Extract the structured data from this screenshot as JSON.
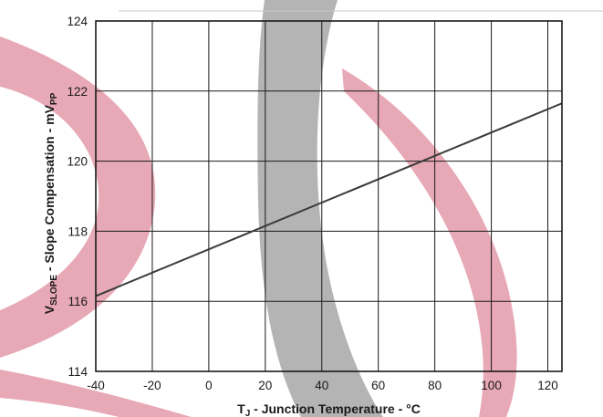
{
  "colors": {
    "grid": "#1a1a1a",
    "line": "#3a3a3a",
    "watermark_red": "#e8a9b6",
    "watermark_gray": "#b4b4b4"
  },
  "watermark": {
    "description": "decorative logo swooshes",
    "text": ""
  },
  "chart_data": {
    "type": "line",
    "title": "",
    "xlabel": {
      "prefix": "T",
      "subscript": "J",
      "rest": " - Junction Temperature - °C"
    },
    "ylabel": {
      "prefix": "V",
      "subscript": "SLOPE",
      "middle": " - Slope Compensation - mV",
      "subscript2": "PP"
    },
    "xlim": [
      -40,
      125
    ],
    "ylim": [
      114,
      124
    ],
    "xticks": [
      -40,
      -20,
      0,
      20,
      40,
      60,
      80,
      100,
      120
    ],
    "yticks": [
      114,
      116,
      118,
      120,
      122,
      124
    ],
    "grid": true,
    "series": [
      {
        "name": "",
        "x": [
          -40,
          125
        ],
        "y": [
          116.15,
          121.65
        ]
      }
    ]
  }
}
